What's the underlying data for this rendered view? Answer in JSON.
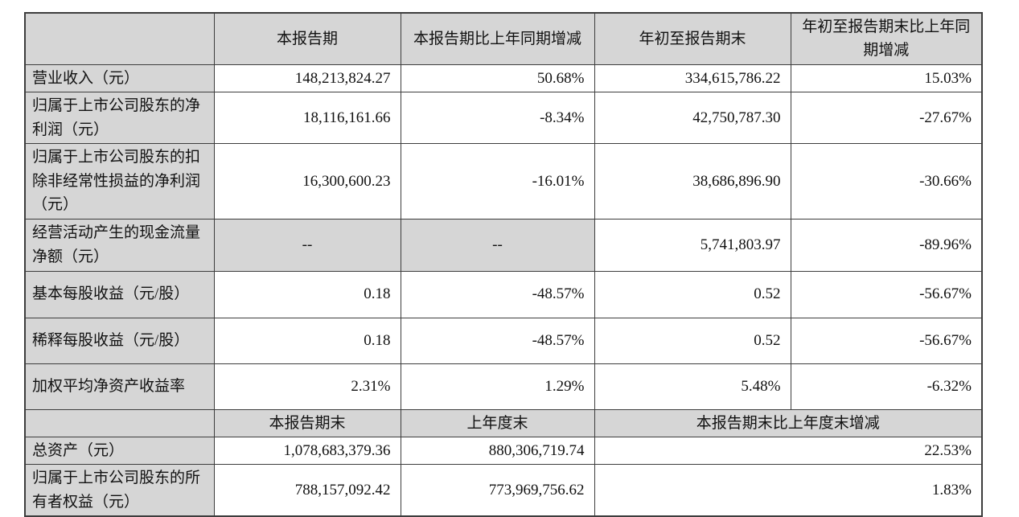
{
  "table": {
    "header1": {
      "col1": "本报告期",
      "col2": "本报告期比上年同期增减",
      "col3": "年初至报告期末",
      "col4": "年初至报告期末比上年同期增减"
    },
    "rows": [
      {
        "label": "营业收入（元）",
        "v1": "148,213,824.27",
        "v2": "50.68%",
        "v3": "334,615,786.22",
        "v4": "15.03%"
      },
      {
        "label": "归属于上市公司股东的净利润（元）",
        "v1": "18,116,161.66",
        "v2": "-8.34%",
        "v3": "42,750,787.30",
        "v4": "-27.67%"
      },
      {
        "label": "归属于上市公司股东的扣除非经常性损益的净利润（元）",
        "v1": "16,300,600.23",
        "v2": "-16.01%",
        "v3": "38,686,896.90",
        "v4": "-30.66%"
      },
      {
        "label": "经营活动产生的现金流量净额（元）",
        "v1": "--",
        "v2": "--",
        "v3": "5,741,803.97",
        "v4": "-89.96%"
      },
      {
        "label": "基本每股收益（元/股）",
        "v1": "0.18",
        "v2": "-48.57%",
        "v3": "0.52",
        "v4": "-56.67%"
      },
      {
        "label": "稀释每股收益（元/股）",
        "v1": "0.18",
        "v2": "-48.57%",
        "v3": "0.52",
        "v4": "-56.67%"
      },
      {
        "label": "加权平均净资产收益率",
        "v1": "2.31%",
        "v2": "1.29%",
        "v3": "5.48%",
        "v4": "-6.32%"
      }
    ],
    "header2": {
      "col1": "本报告期末",
      "col2": "上年度末",
      "col3": "本报告期末比上年度末增减"
    },
    "rows2": [
      {
        "label": "总资产（元）",
        "v1": "1,078,683,379.36",
        "v2": "880,306,719.74",
        "v3": "22.53%"
      },
      {
        "label": "归属于上市公司股东的所有者权益（元）",
        "v1": "788,157,092.42",
        "v2": "773,969,756.62",
        "v3": "1.83%"
      }
    ],
    "colors": {
      "header_fill": "#d6d6d6",
      "border": "#3d3d3d",
      "text": "#111111"
    }
  }
}
